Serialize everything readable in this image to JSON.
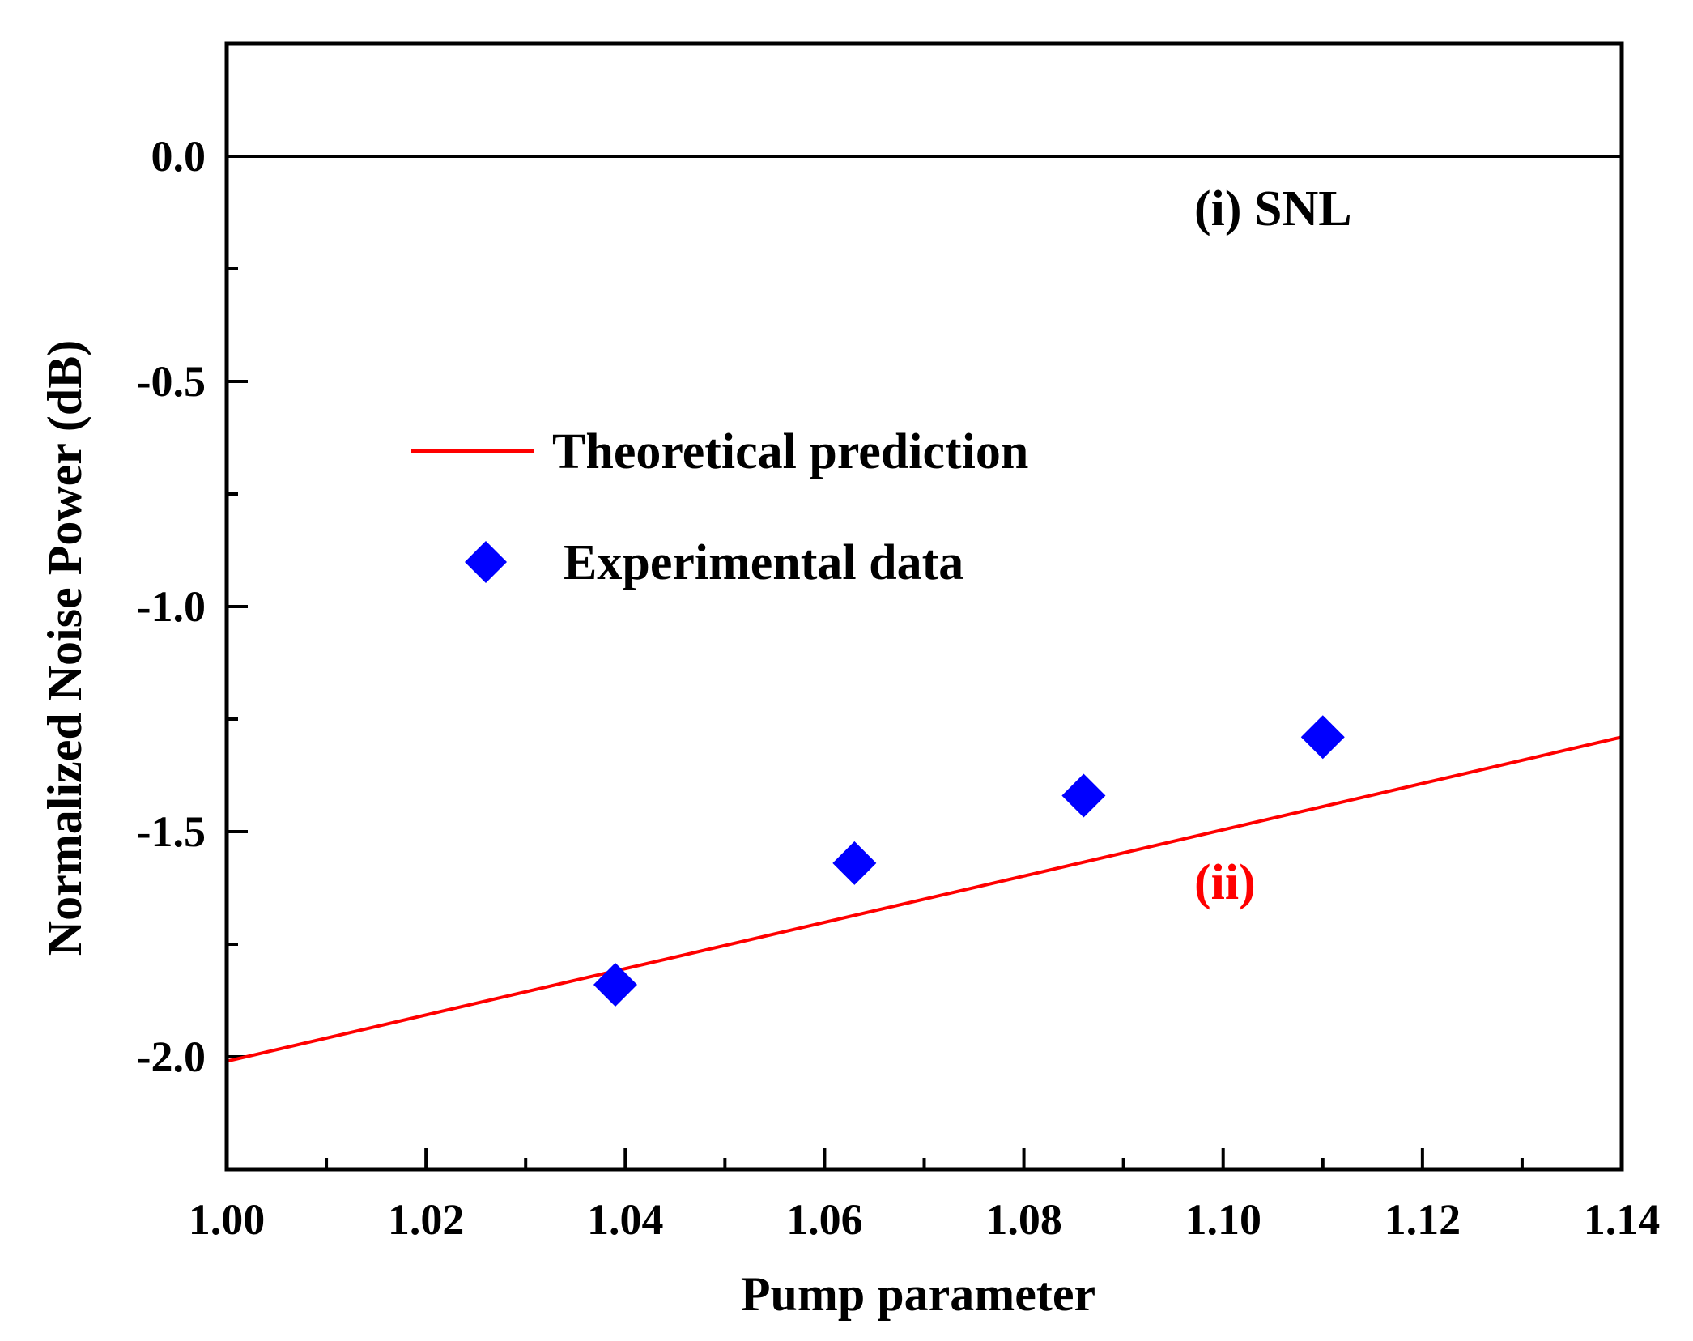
{
  "chart_data": {
    "type": "scatter",
    "title": "",
    "xlabel": "Pump parameter",
    "ylabel": "Normalized Noise Power (dB)",
    "xlim": [
      1.0,
      1.14
    ],
    "ylim": [
      -2.25,
      0.25
    ],
    "x_ticks": [
      "1.00",
      "1.02",
      "1.04",
      "1.06",
      "1.08",
      "1.10",
      "1.12",
      "1.14"
    ],
    "y_ticks": [
      "0.0",
      "-0.5",
      "-1.0",
      "-1.5",
      "-2.0"
    ],
    "x_tick_values": [
      1.0,
      1.02,
      1.04,
      1.06,
      1.08,
      1.1,
      1.12,
      1.14
    ],
    "y_tick_values": [
      0.0,
      -0.5,
      -1.0,
      -1.5,
      -2.0
    ],
    "snl_line": {
      "y": 0.0,
      "color": "#000000"
    },
    "series": [
      {
        "name": "Theoretical prediction",
        "kind": "line",
        "color": "#ff0000",
        "x": [
          1.0,
          1.14
        ],
        "y": [
          -2.01,
          -1.29
        ]
      },
      {
        "name": "Experimental data",
        "kind": "scatter",
        "marker": "diamond",
        "color": "#0000ff",
        "x": [
          1.039,
          1.063,
          1.086,
          1.11
        ],
        "y": [
          -1.84,
          -1.57,
          -1.42,
          -1.29
        ]
      }
    ],
    "legend": {
      "placement": "upper-left"
    },
    "annotations": [
      {
        "text": "(i) SNL",
        "color": "#000000"
      },
      {
        "text": "(ii)",
        "color": "#ff0000"
      }
    ]
  }
}
